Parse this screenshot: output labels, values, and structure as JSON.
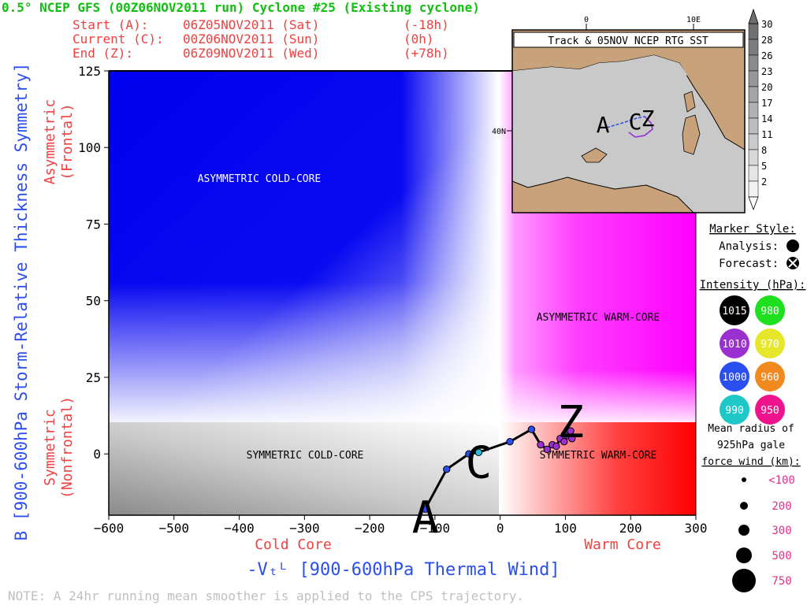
{
  "header": {
    "title": "0.5° NCEP GFS (00Z06NOV2011 run) Cyclone #25 (Existing cyclone)",
    "start": {
      "label": "Start (A):",
      "time": "06Z05NOV2011 (Sat)",
      "offset": "(-18h)"
    },
    "current": {
      "label": "Current (C):",
      "time": "00Z06NOV2011 (Sun)",
      "offset": "(0h)"
    },
    "end": {
      "label": "End (Z):",
      "time": "06Z09NOV2011 (Wed)",
      "offset": "(+78h)"
    }
  },
  "axes": {
    "ylabel": "B [900-600hPa Storm-Relative Thickness Symmetry]",
    "xlabel": "-Vₜᴸ [900-600hPa Thermal Wind]",
    "x_low_label": "Cold Core",
    "x_high_label": "Warm Core",
    "y_high_label": [
      "Asymmetric",
      "(Frontal)"
    ],
    "y_low_label": [
      "Symmetric",
      "(Nonfrontal)"
    ]
  },
  "regions": {
    "asym_cold": "ASYMMETRIC COLD-CORE",
    "asym_warm": "ASYMMETRIC WARM-CORE",
    "sym_cold": "SYMMETRIC COLD-CORE",
    "sym_warm": "SYMMETRIC WARM-CORE"
  },
  "chart_data": {
    "type": "scatter",
    "xlim": [
      -600,
      300
    ],
    "ylim": [
      -20,
      125
    ],
    "x_ticks": [
      -600,
      -500,
      -400,
      -300,
      -200,
      -100,
      0,
      100,
      200,
      300
    ],
    "y_ticks": [
      0,
      25,
      50,
      75,
      100,
      125
    ],
    "trajectory": [
      {
        "x": -115,
        "y": -18,
        "color": "#2b4ef0"
      },
      {
        "x": -82,
        "y": -5,
        "color": "#2b4ef0"
      },
      {
        "x": -48,
        "y": 0,
        "color": "#2b4ef0"
      },
      {
        "x": -33,
        "y": 0.5,
        "color": "#2bbdd6"
      },
      {
        "x": 15,
        "y": 4,
        "color": "#2b4ef0"
      },
      {
        "x": 48,
        "y": 8,
        "color": "#2b4ef0"
      },
      {
        "x": 62,
        "y": 3,
        "color": "#9b30d0"
      },
      {
        "x": 72,
        "y": 1.5,
        "color": "#9b30d0"
      },
      {
        "x": 80,
        "y": 3,
        "color": "#9b30d0"
      },
      {
        "x": 86,
        "y": 2.5,
        "color": "#9b30d0"
      },
      {
        "x": 92,
        "y": 5,
        "color": "#9b30d0"
      },
      {
        "x": 98,
        "y": 4,
        "color": "#9b30d0"
      },
      {
        "x": 103,
        "y": 6,
        "color": "#9b30d0"
      },
      {
        "x": 108,
        "y": 7.5,
        "color": "#9b30d0"
      },
      {
        "x": 110,
        "y": 5,
        "color": "#9b30d0"
      }
    ],
    "markers": {
      "A": {
        "x": -115,
        "y": -18
      },
      "C": {
        "x": -33,
        "y": 0.5
      },
      "Z": {
        "x": 108,
        "y": 7.5
      }
    }
  },
  "inset_map": {
    "title": "Track & 05NOV NCEP RTG SST",
    "lon_labels": [
      "0",
      "10E"
    ],
    "lat_label": "40N",
    "markers": [
      "A",
      "C",
      "Z"
    ]
  },
  "colorbar": {
    "labels": [
      "30",
      "28",
      "26",
      "23",
      "20",
      "17",
      "14",
      "11",
      "8",
      "5",
      "2"
    ],
    "colors": [
      "#707070",
      "#7d7d7d",
      "#8a8a8a",
      "#979797",
      "#a4a4a4",
      "#b1b1b1",
      "#bebebe",
      "#cbcbcb",
      "#d8d8d8",
      "#e5e5e5",
      "#f2f2f2"
    ]
  },
  "legend": {
    "marker_style_title": "Marker Style:",
    "analysis_label": "Analysis:",
    "forecast_label": "Forecast:",
    "intensity_title": "Intensity (hPa):",
    "intensity": [
      {
        "value": "1015",
        "color": "#000000",
        "text_color": "#ffffff"
      },
      {
        "value": "980",
        "color": "#1ee01e",
        "text_color": "#ffffff"
      },
      {
        "value": "1010",
        "color": "#9b30d0",
        "text_color": "#ffffff"
      },
      {
        "value": "970",
        "color": "#e6e62a",
        "text_color": "#ffffff"
      },
      {
        "value": "1000",
        "color": "#2b4ef0",
        "text_color": "#ffffff"
      },
      {
        "value": "960",
        "color": "#f08a1e",
        "text_color": "#ffffff"
      },
      {
        "value": "990",
        "color": "#1ec8c8",
        "text_color": "#ffffff"
      },
      {
        "value": "950",
        "color": "#f0148c",
        "text_color": "#ffffff"
      }
    ],
    "radius_title": [
      "Mean radius of",
      "925hPa gale",
      "force wind (km):"
    ],
    "radius": [
      {
        "label": "<100",
        "size": 3
      },
      {
        "label": "200",
        "size": 5
      },
      {
        "label": "300",
        "size": 7
      },
      {
        "label": "500",
        "size": 10
      },
      {
        "label": "750",
        "size": 15
      }
    ]
  },
  "note": "NOTE: A 24hr running mean smoother is applied to the CPS trajectory."
}
